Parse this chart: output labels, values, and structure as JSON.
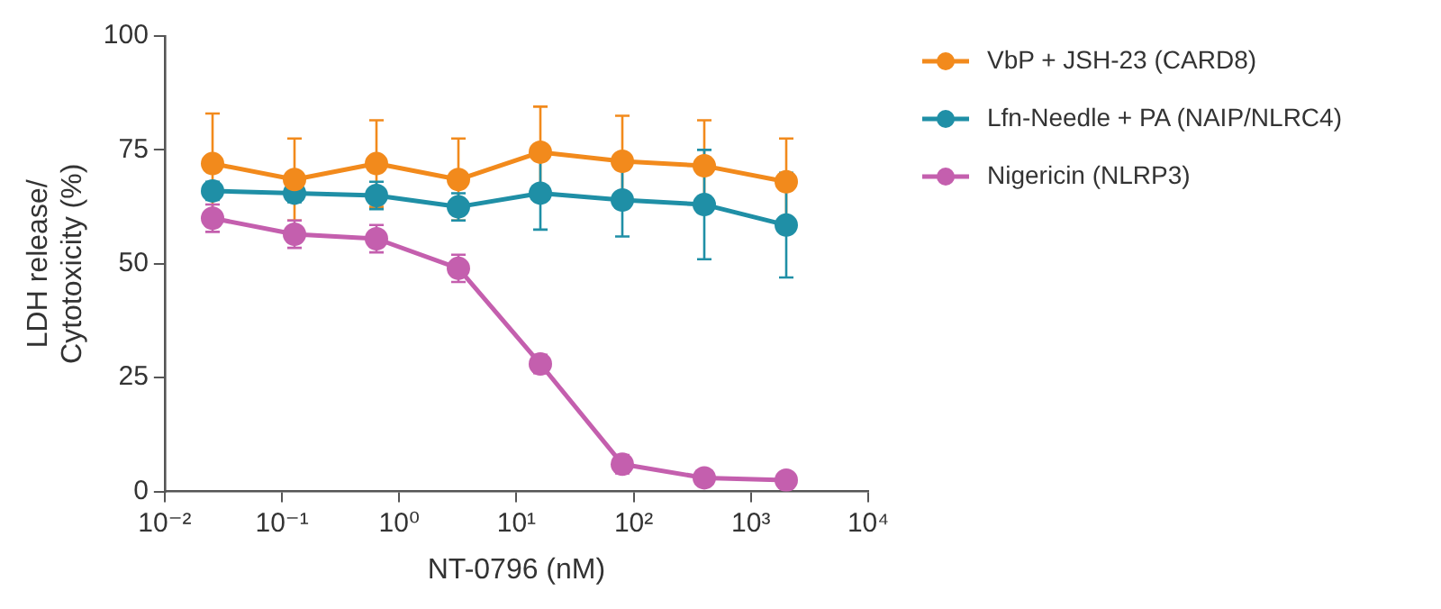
{
  "chart_data": {
    "type": "line",
    "xlabel": "NT-0796 (nM)",
    "ylabel": "LDH release/\nCytotoxicity (%)",
    "log": "x",
    "x": [
      0.0256,
      0.128,
      0.64,
      3.2,
      16,
      80,
      400,
      2000
    ],
    "xlim": [
      0.01,
      10000
    ],
    "xticks": [
      {
        "value": 0.01,
        "label": "10⁻²"
      },
      {
        "value": 0.1,
        "label": "10⁻¹"
      },
      {
        "value": 1,
        "label": "10⁰"
      },
      {
        "value": 10,
        "label": "10¹"
      },
      {
        "value": 100,
        "label": "10²"
      },
      {
        "value": 1000,
        "label": "10³"
      },
      {
        "value": 10000,
        "label": "10⁴"
      }
    ],
    "ylim": [
      0,
      100
    ],
    "yticks": [
      0,
      25,
      50,
      75,
      100
    ],
    "grid": false,
    "legend": "top right",
    "marker": "circle",
    "line_style": "solid",
    "series": [
      {
        "name": "VbP + JSH-23 (CARD8)",
        "color": "#f28a1c",
        "values": [
          72,
          68.5,
          72,
          68.5,
          74.5,
          72.5,
          71.5,
          68
        ],
        "errors": [
          11,
          9,
          9.5,
          9,
          10,
          10,
          10,
          9.5
        ]
      },
      {
        "name": "Lfn-Needle + PA (NAIP/NLRC4)",
        "color": "#1f8fa6",
        "values": [
          66,
          65.5,
          65,
          62.5,
          65.5,
          64,
          63,
          58.5
        ],
        "errors": [
          2,
          2,
          3,
          3,
          8,
          8,
          12,
          11.5
        ]
      },
      {
        "name": "Nigericin (NLRP3)",
        "color": "#c45fae",
        "values": [
          60,
          56.5,
          55.5,
          49,
          28,
          6,
          3,
          2.5
        ],
        "errors": [
          3,
          3,
          3,
          3,
          2,
          2,
          null,
          null
        ]
      }
    ]
  }
}
